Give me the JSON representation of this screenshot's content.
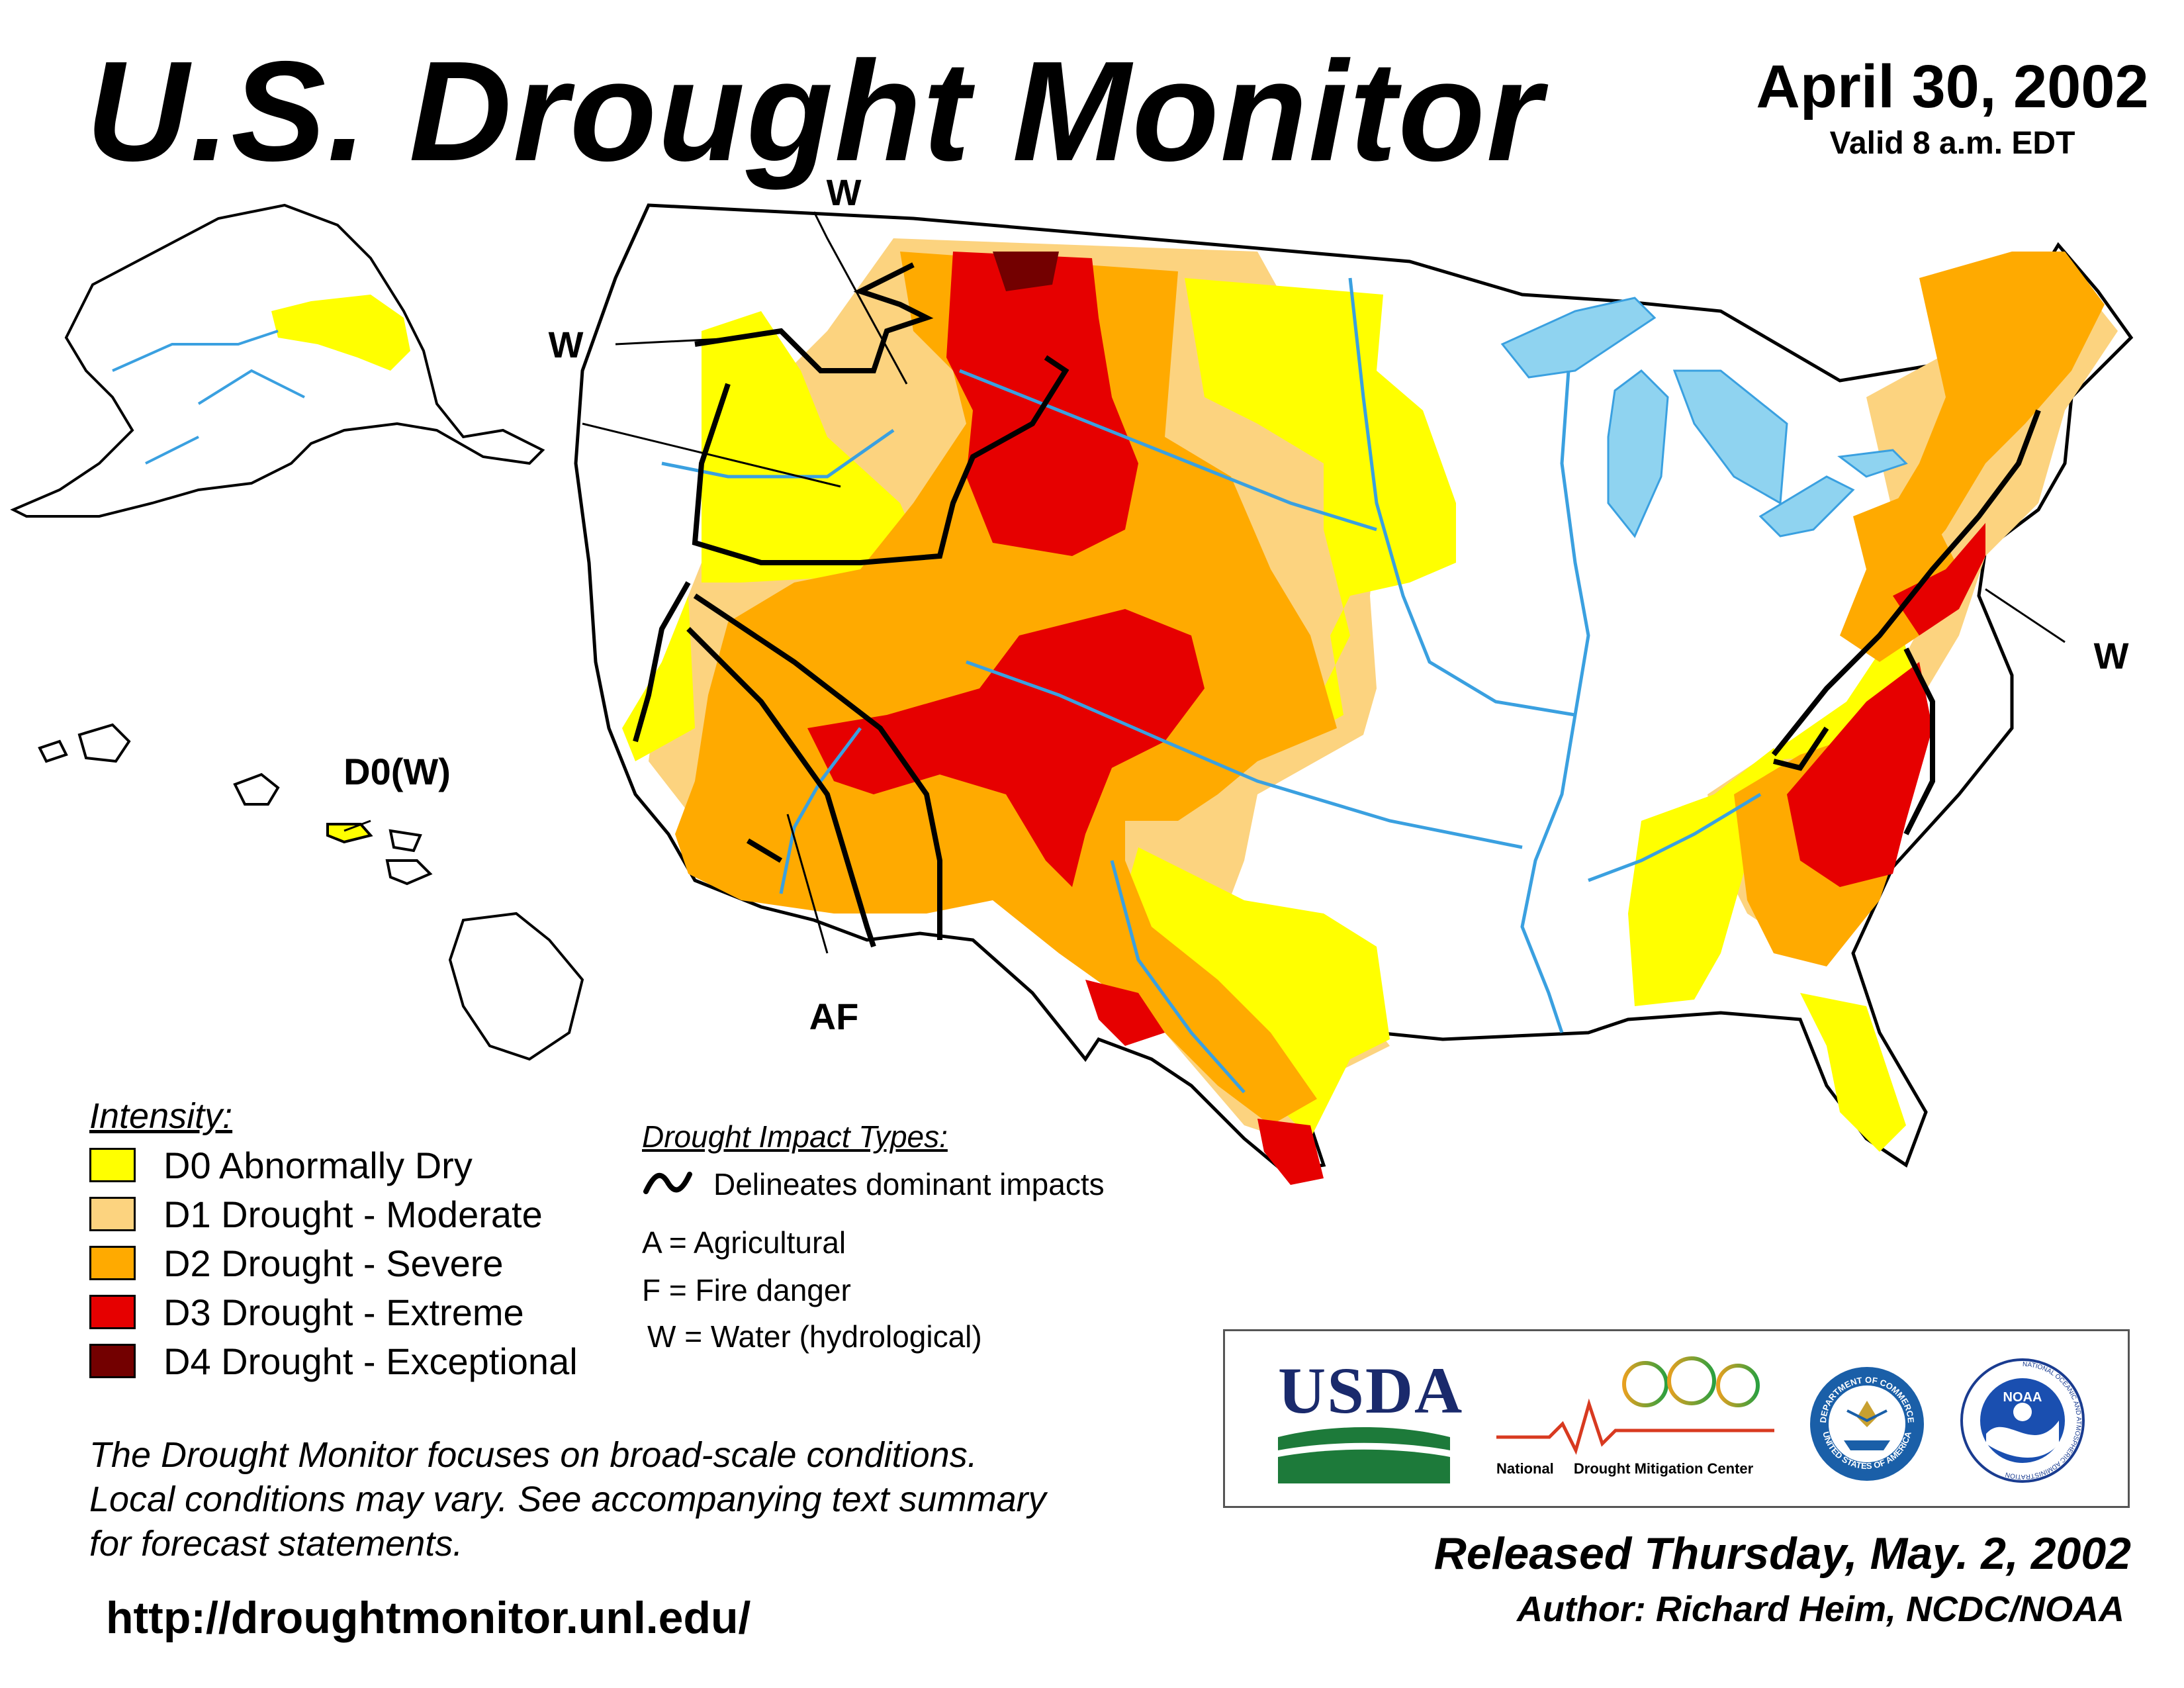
{
  "header": {
    "title": "U.S. Drought Monitor",
    "date": "April 30, 2002",
    "valid": "Valid 8 a.m. EDT"
  },
  "map_labels": {
    "hawaii": "D0(W)",
    "northwest_w": "W",
    "pacific_nw_w": "W",
    "southwest_af": "AF",
    "northeast_w": "W"
  },
  "colors": {
    "D0": "#ffff00",
    "D1": "#fcd37f",
    "D2": "#ffaa00",
    "D3": "#e60000",
    "D4": "#730000",
    "water": "#8fd3f0",
    "rivers": "#3aa0e0"
  },
  "legend": {
    "title": "Intensity:",
    "items": [
      {
        "label": "D0 Abnormally Dry",
        "color": "#ffff00"
      },
      {
        "label": "D1 Drought - Moderate",
        "color": "#fcd37f"
      },
      {
        "label": "D2 Drought - Severe",
        "color": "#ffaa00"
      },
      {
        "label": "D3 Drought - Extreme",
        "color": "#e60000"
      },
      {
        "label": "D4 Drought - Exceptional",
        "color": "#730000"
      }
    ]
  },
  "impacts": {
    "title": "Drought Impact Types:",
    "delineates": "Delineates dominant impacts",
    "types": [
      "A = Agricultural",
      "F = Fire danger",
      "W = Water (hydrological)"
    ]
  },
  "note": {
    "line1": "The Drought Monitor focuses on broad-scale conditions.",
    "line2": "Local conditions may vary. See accompanying text summary",
    "line3": "for forecast statements."
  },
  "url": "http://droughtmonitor.unl.edu/",
  "logos": {
    "usda": "USDA",
    "ndmc_1": "National",
    "ndmc_2": "Drought Mitigation Center",
    "noaa": "NOAA",
    "doc": "DEPARTMENT OF COMMERCE",
    "doc_bottom": "UNITED STATES OF AMERICA",
    "noaa_ring": "NATIONAL OCEANIC AND ATMOSPHERIC ADMINISTRATION"
  },
  "footer": {
    "released": "Released Thursday, May. 2, 2002",
    "author": "Author: Richard Heim, NCDC/NOAA"
  }
}
